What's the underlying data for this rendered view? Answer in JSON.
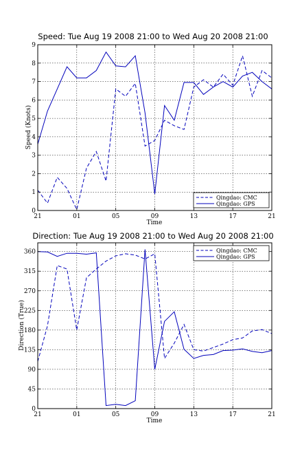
{
  "chart_data": [
    {
      "type": "line",
      "title": "Speed: Tue Aug 19 2008 21:00 to Wed Aug 20 2008 21:00",
      "xlabel": "Time",
      "ylabel": "Speed (Knots)",
      "xlim": [
        0,
        24
      ],
      "ylim": [
        0,
        9
      ],
      "xticks": [
        0,
        4,
        8,
        12,
        16,
        20,
        24
      ],
      "xtick_labels": [
        "21",
        "01",
        "05",
        "09",
        "13",
        "17",
        "21"
      ],
      "yticks": [
        0,
        1,
        2,
        3,
        4,
        5,
        6,
        7,
        8,
        9
      ],
      "ytick_labels": [
        "0",
        "1",
        "2",
        "3",
        "4",
        "5",
        "6",
        "7",
        "8",
        "9"
      ],
      "grid": true,
      "legend_position": "lower-right",
      "series": [
        {
          "name": "Qingdao: CMC",
          "style": "dashed",
          "color": "#0000bb",
          "x": [
            0,
            1,
            2,
            3,
            4,
            5,
            6,
            7,
            8,
            9,
            10,
            11,
            12,
            13,
            14,
            15,
            16,
            17,
            18,
            19,
            20,
            21,
            22,
            23,
            24
          ],
          "y": [
            1.1,
            0.4,
            1.8,
            1.2,
            0.05,
            2.3,
            3.2,
            1.6,
            6.6,
            6.2,
            6.9,
            3.5,
            3.8,
            4.9,
            4.6,
            4.4,
            6.7,
            7.1,
            6.7,
            7.4,
            6.8,
            8.4,
            6.2,
            7.6,
            7.2
          ]
        },
        {
          "name": "Qingdao: GPS",
          "style": "solid",
          "color": "#0000bb",
          "x": [
            0,
            1,
            2,
            3,
            4,
            5,
            6,
            7,
            8,
            9,
            10,
            11,
            12,
            13,
            14,
            15,
            16,
            17,
            18,
            19,
            20,
            21,
            22,
            23,
            24
          ],
          "y": [
            3.6,
            5.4,
            6.6,
            7.8,
            7.2,
            7.2,
            7.6,
            8.6,
            7.85,
            7.8,
            8.4,
            5.3,
            0.9,
            5.7,
            4.9,
            6.95,
            6.95,
            6.3,
            6.7,
            7.0,
            6.7,
            7.3,
            7.5,
            7.0,
            6.6
          ]
        }
      ]
    },
    {
      "type": "line",
      "title": "Direction: Tue Aug 19 2008 21:00 to Wed Aug 20 2008 21:00",
      "xlabel": "Time",
      "ylabel": "Direction (True)",
      "xlim": [
        0,
        24
      ],
      "ylim": [
        0,
        380
      ],
      "xticks": [
        0,
        4,
        8,
        12,
        16,
        20,
        24
      ],
      "xtick_labels": [
        "21",
        "01",
        "05",
        "09",
        "13",
        "17",
        "21"
      ],
      "yticks": [
        0,
        45,
        90,
        135,
        180,
        225,
        270,
        315,
        360
      ],
      "ytick_labels": [
        "0",
        "45",
        "90",
        "135",
        "180",
        "225",
        "270",
        "315",
        "360"
      ],
      "grid": true,
      "legend_position": "top-right",
      "series": [
        {
          "name": "Qingdao: CMC",
          "style": "dashed",
          "color": "#0000bb",
          "x": [
            0,
            1,
            2,
            3,
            4,
            5,
            6,
            7,
            8,
            9,
            10,
            11,
            12,
            13,
            14,
            15,
            16,
            17,
            18,
            19,
            20,
            21,
            22,
            23,
            24
          ],
          "y": [
            108,
            190,
            328,
            320,
            180,
            300,
            320,
            338,
            350,
            355,
            352,
            343,
            355,
            115,
            150,
            193,
            135,
            132,
            140,
            148,
            158,
            162,
            178,
            181,
            172
          ]
        },
        {
          "name": "Qingdao: GPS",
          "style": "solid",
          "color": "#0000bb",
          "x": [
            0,
            1,
            2,
            3,
            4,
            5,
            6,
            7,
            8,
            9,
            10,
            11,
            12,
            13,
            14,
            15,
            16,
            17,
            18,
            19,
            20,
            21,
            22,
            23,
            24
          ],
          "y": [
            360,
            359,
            349,
            356,
            356,
            354,
            357,
            7,
            10,
            7,
            18,
            365,
            90,
            200,
            222,
            136,
            115,
            122,
            124,
            133,
            134,
            137,
            131,
            128,
            133
          ]
        }
      ]
    }
  ]
}
